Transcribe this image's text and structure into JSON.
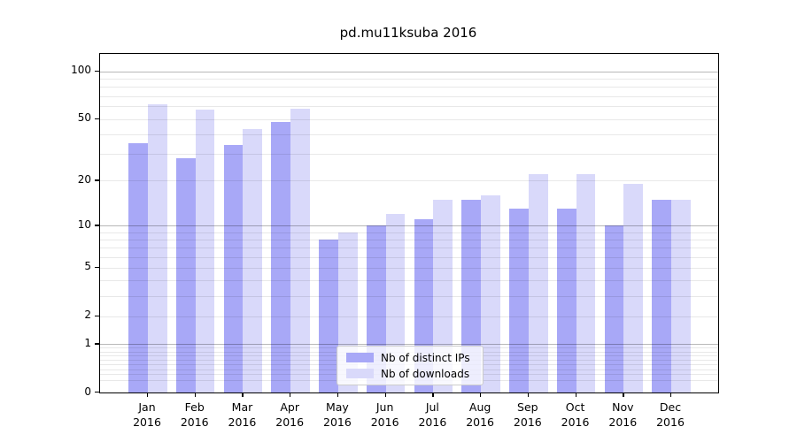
{
  "title": "pd.mu11ksuba 2016",
  "chart_data": {
    "type": "bar",
    "title": "pd.mu11ksuba 2016",
    "categories": [
      "Jan",
      "Feb",
      "Mar",
      "Apr",
      "May",
      "Jun",
      "Jul",
      "Aug",
      "Sep",
      "Oct",
      "Nov",
      "Dec"
    ],
    "category_year": "2016",
    "series": [
      {
        "name": "Nb of distinct IPs",
        "color": "#a8a8f7",
        "values": [
          35,
          28,
          34,
          48,
          8,
          10,
          11,
          15,
          13,
          13,
          10,
          15
        ]
      },
      {
        "name": "Nb of downloads",
        "color": "#d9d9fa",
        "values": [
          62,
          57,
          43,
          58,
          9,
          12,
          15,
          16,
          22,
          22,
          19,
          15
        ]
      }
    ],
    "xlabel": "",
    "ylabel": "",
    "yscale": "log1p",
    "yticks": [
      0,
      1,
      2,
      5,
      10,
      20,
      50,
      100
    ],
    "ytick_major_gridlines": [
      1,
      10,
      100
    ],
    "ytick_minor_gridlines": [
      0.2,
      0.3,
      0.4,
      0.5,
      0.6,
      0.7,
      0.8,
      0.9,
      2,
      3,
      4,
      5,
      6,
      7,
      8,
      9,
      20,
      30,
      40,
      50,
      60,
      70,
      80,
      90
    ],
    "ylim": [
      0,
      129
    ],
    "grid": true,
    "legend_position": "lower center"
  }
}
